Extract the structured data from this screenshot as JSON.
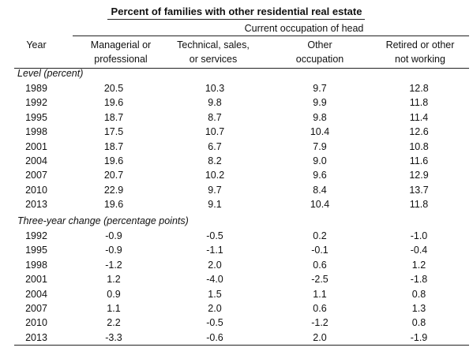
{
  "title": "Percent of families with other residential real estate",
  "span_header": "Current occupation of head",
  "columns": {
    "year": "Year",
    "c1": [
      "Managerial or",
      "professional"
    ],
    "c2": [
      "Technical, sales,",
      "or services"
    ],
    "c3": [
      "Other",
      "occupation"
    ],
    "c4": [
      "Retired or other",
      "not working"
    ]
  },
  "level": {
    "label": "Level (percent)",
    "rows": [
      [
        "1989",
        "20.5",
        "10.3",
        "9.7",
        "12.8"
      ],
      [
        "1992",
        "19.6",
        "9.8",
        "9.9",
        "11.8"
      ],
      [
        "1995",
        "18.7",
        "8.7",
        "9.8",
        "11.4"
      ],
      [
        "1998",
        "17.5",
        "10.7",
        "10.4",
        "12.6"
      ],
      [
        "2001",
        "18.7",
        "6.7",
        "7.9",
        "10.8"
      ],
      [
        "2004",
        "19.6",
        "8.2",
        "9.0",
        "11.6"
      ],
      [
        "2007",
        "20.7",
        "10.2",
        "9.6",
        "12.9"
      ],
      [
        "2010",
        "22.9",
        "9.7",
        "8.4",
        "13.7"
      ],
      [
        "2013",
        "19.6",
        "9.1",
        "10.4",
        "11.8"
      ]
    ]
  },
  "change": {
    "label": "Three-year change (percentage points)",
    "rows": [
      [
        "1992",
        "-0.9",
        "-0.5",
        "0.2",
        "-1.0"
      ],
      [
        "1995",
        "-0.9",
        "-1.1",
        "-0.1",
        "-0.4"
      ],
      [
        "1998",
        "-1.2",
        "2.0",
        "0.6",
        "1.2"
      ],
      [
        "2001",
        "1.2",
        "-4.0",
        "-2.5",
        "-1.8"
      ],
      [
        "2004",
        "0.9",
        "1.5",
        "1.1",
        "0.8"
      ],
      [
        "2007",
        "1.1",
        "2.0",
        "0.6",
        "1.3"
      ],
      [
        "2010",
        "2.2",
        "-0.5",
        "-1.2",
        "0.8"
      ],
      [
        "2013",
        "-3.3",
        "-0.6",
        "2.0",
        "-1.9"
      ]
    ]
  }
}
